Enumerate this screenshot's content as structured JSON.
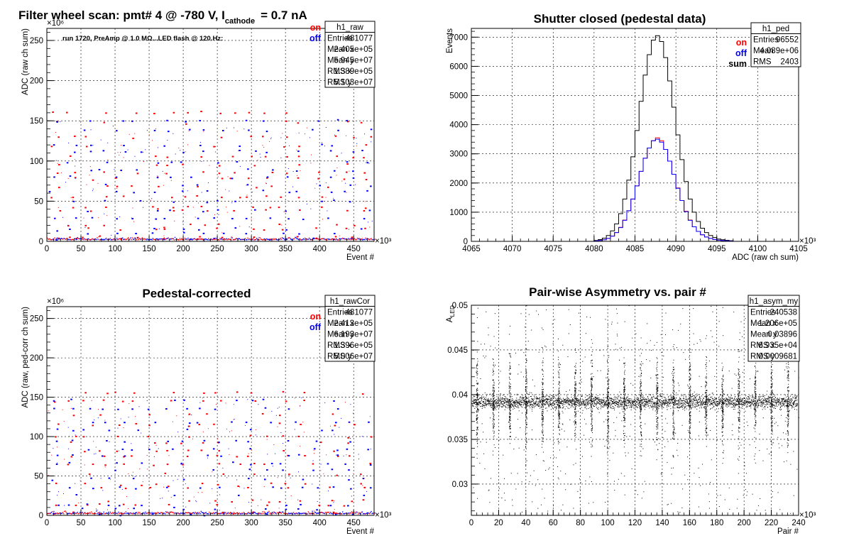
{
  "chart_data": [
    {
      "type": "scatter",
      "title": "Filter wheel scan: pmt#   4 @  -780 V, I",
      "title_sub": "cathode",
      "title_tail": "= 0.7 nA",
      "annotation": "run 1720, PreAmp @ 1.0 MΩ...LED flash @  120.Hz:",
      "xlabel": "Event #",
      "ylabel": "ADC (raw ch sum)",
      "x_exponent": "×10³",
      "y_exponent": "×10⁶",
      "xlim": [
        0,
        480
      ],
      "ylim": [
        0,
        265
      ],
      "xticks": [
        0,
        50,
        100,
        150,
        200,
        250,
        300,
        350,
        400,
        450
      ],
      "yticks": [
        0,
        50,
        100,
        150,
        200,
        250
      ],
      "grid": true,
      "legend": [
        {
          "label": "on",
          "color": "#ff0000"
        },
        {
          "label": "off",
          "color": "#0000ff"
        }
      ],
      "stats": {
        "name": "h1_raw",
        "rows": [
          {
            "label": "Entries",
            "value": "481077"
          },
          {
            "label": "Mean x",
            "value": "2.405e+05"
          },
          {
            "label": "Mean y",
            "value": "5.945e+07"
          },
          {
            "label": "RMS x",
            "value": "1.389e+05"
          },
          {
            "label": "RMS y",
            "value": "5.103e+07"
          }
        ]
      },
      "pattern": {
        "period": 24,
        "on_levels": [
          160,
          148,
          130,
          118,
          105,
          95,
          85,
          78,
          68,
          55,
          42,
          38,
          20,
          15,
          5
        ],
        "off_levels": [
          150,
          138,
          120,
          112,
          98,
          88,
          80,
          70,
          62,
          50,
          38,
          28,
          15,
          10,
          3
        ]
      },
      "colors": {
        "on": "#ff0000",
        "off": "#0000ff"
      }
    },
    {
      "type": "histogram",
      "title": "Shutter closed (pedestal data)",
      "xlabel": "ADC (raw ch sum)",
      "ylabel": "Events",
      "x_exponent": "×10³",
      "xlim": [
        4065,
        4105
      ],
      "ylim": [
        0,
        7300
      ],
      "xticks": [
        4065,
        4070,
        4075,
        4080,
        4085,
        4090,
        4095,
        4100,
        4105
      ],
      "yticks": [
        0,
        1000,
        2000,
        3000,
        4000,
        5000,
        6000,
        7000
      ],
      "grid": true,
      "legend": [
        {
          "label": "on",
          "color": "#ff0000"
        },
        {
          "label": "off",
          "color": "#0000ff"
        },
        {
          "label": "sum",
          "color": "#000000"
        }
      ],
      "stats": {
        "name": "h1_ped",
        "rows": [
          {
            "label": "Entries",
            "value": "96552"
          },
          {
            "label": "Mean",
            "value": "4.089e+06"
          },
          {
            "label": "RMS",
            "value": "2403"
          }
        ]
      },
      "bin_start": 4080,
      "bin_width": 0.5,
      "series": [
        {
          "name": "sum",
          "color": "#000000",
          "values": [
            30,
            60,
            110,
            200,
            360,
            600,
            950,
            1450,
            2100,
            2900,
            3800,
            4800,
            5700,
            6400,
            6900,
            7050,
            6850,
            6300,
            5500,
            4600,
            3650,
            2800,
            2050,
            1450,
            1000,
            680,
            450,
            300,
            200,
            130,
            80,
            55,
            35,
            20
          ]
        },
        {
          "name": "on",
          "color": "#ff0000",
          "values": [
            15,
            30,
            55,
            100,
            180,
            300,
            480,
            730,
            1050,
            1450,
            1900,
            2400,
            2850,
            3200,
            3450,
            3550,
            3450,
            3150,
            2750,
            2300,
            1830,
            1400,
            1030,
            730,
            500,
            340,
            225,
            150,
            100,
            65,
            40,
            28,
            18,
            10
          ]
        },
        {
          "name": "off",
          "color": "#0000ff",
          "values": [
            15,
            30,
            55,
            100,
            180,
            300,
            470,
            720,
            1050,
            1450,
            1900,
            2400,
            2850,
            3200,
            3450,
            3500,
            3400,
            3150,
            2750,
            2300,
            1820,
            1400,
            1020,
            720,
            500,
            340,
            225,
            150,
            100,
            65,
            40,
            27,
            17,
            10
          ]
        }
      ]
    },
    {
      "type": "scatter",
      "title": "Pedestal-corrected",
      "xlabel": "Event #",
      "ylabel": "ADC (raw, ped-corr ch sum)",
      "x_exponent": "×10³",
      "y_exponent": "×10⁶",
      "xlim": [
        0,
        480
      ],
      "ylim": [
        0,
        265
      ],
      "xticks": [
        0,
        50,
        100,
        150,
        200,
        250,
        300,
        350,
        400,
        450
      ],
      "yticks": [
        0,
        50,
        100,
        150,
        200,
        250
      ],
      "grid": true,
      "legend": [
        {
          "label": "on",
          "color": "#ff0000"
        },
        {
          "label": "off",
          "color": "#0000ff"
        }
      ],
      "stats": {
        "name": "h1_rawCor",
        "rows": [
          {
            "label": "Entries",
            "value": "481077"
          },
          {
            "label": "Mean x",
            "value": "2.413e+05"
          },
          {
            "label": "Mean y",
            "value": "6.193e+07"
          },
          {
            "label": "RMS x",
            "value": "1.396e+05"
          },
          {
            "label": "RMS y",
            "value": "5.006e+07"
          }
        ]
      },
      "pattern": {
        "period": 24,
        "on_levels": [
          156,
          145,
          128,
          115,
          100,
          92,
          82,
          75,
          65,
          52,
          40,
          35,
          18,
          13,
          3
        ],
        "off_levels": [
          146,
          135,
          118,
          108,
          94,
          84,
          76,
          66,
          58,
          46,
          35,
          25,
          13,
          8,
          1
        ]
      },
      "colors": {
        "on": "#ff0000",
        "off": "#0000ff"
      }
    },
    {
      "type": "scatter",
      "title": "Pair-wise Asymmetry vs. pair #",
      "xlabel": "Pair #",
      "ylabel": "A",
      "ylabel_sub": "LED",
      "x_exponent": "×10³",
      "xlim": [
        0,
        240
      ],
      "ylim": [
        0.0265,
        0.05
      ],
      "xticks": [
        0,
        20,
        40,
        60,
        80,
        100,
        120,
        140,
        160,
        180,
        200,
        220,
        240
      ],
      "yticks": [
        0.03,
        0.035,
        0.04,
        0.045,
        0.05
      ],
      "grid": true,
      "stats": {
        "name": "h1_asym_my",
        "rows": [
          {
            "label": "Entries",
            "value": "240538"
          },
          {
            "label": "Mean x",
            "value": "1.206e+05"
          },
          {
            "label": "Mean y",
            "value": "0.03896"
          },
          {
            "label": "RMS x",
            "value": "6.935e+04"
          },
          {
            "label": "RMS y",
            "value": "0.0009681"
          }
        ]
      },
      "band_center": 0.0392,
      "band_halfwidth": 0.0006,
      "spike_period": 12,
      "colors": {
        "points": "#000000"
      }
    }
  ]
}
